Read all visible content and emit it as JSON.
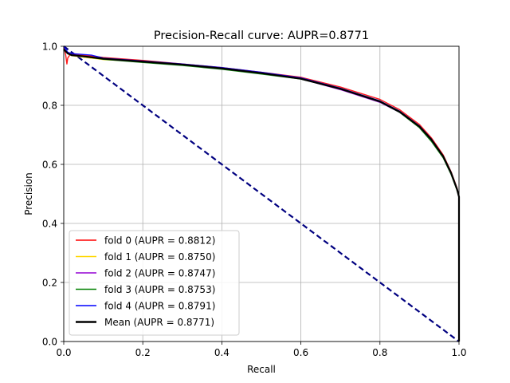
{
  "chart_data": {
    "type": "line",
    "title": "Precision-Recall curve: AUPR=0.8771",
    "xlabel": "Recall",
    "ylabel": "Precision",
    "xlim": [
      0,
      1
    ],
    "ylim": [
      0,
      1
    ],
    "grid": true,
    "legend_position": "lower-left",
    "xticks": [
      "0.0",
      "0.2",
      "0.4",
      "0.6",
      "0.8",
      "1.0"
    ],
    "yticks": [
      "0.0",
      "0.2",
      "0.4",
      "0.6",
      "0.8",
      "1.0"
    ],
    "series": [
      {
        "name": "fold 0 (AUPR = 0.8812)",
        "color": "#ff0000",
        "x": [
          0,
          0.005,
          0.008,
          0.01,
          0.015,
          0.02,
          0.05,
          0.1,
          0.2,
          0.3,
          0.4,
          0.5,
          0.6,
          0.7,
          0.8,
          0.85,
          0.9,
          0.93,
          0.96,
          0.98,
          0.995,
          1.0,
          1.0
        ],
        "y": [
          1.0,
          0.97,
          0.94,
          0.96,
          0.97,
          0.975,
          0.97,
          0.962,
          0.952,
          0.94,
          0.928,
          0.912,
          0.895,
          0.862,
          0.82,
          0.785,
          0.735,
          0.69,
          0.632,
          0.575,
          0.52,
          0.49,
          0.0
        ]
      },
      {
        "name": "fold 1 (AUPR = 0.8750)",
        "color": "#ffd700",
        "x": [
          0,
          0.01,
          0.02,
          0.05,
          0.1,
          0.2,
          0.3,
          0.4,
          0.5,
          0.6,
          0.7,
          0.8,
          0.85,
          0.9,
          0.93,
          0.96,
          0.98,
          0.995,
          1.0,
          1.0
        ],
        "y": [
          0.99,
          0.975,
          0.968,
          0.963,
          0.955,
          0.948,
          0.937,
          0.924,
          0.908,
          0.89,
          0.856,
          0.812,
          0.778,
          0.728,
          0.683,
          0.625,
          0.57,
          0.515,
          0.49,
          0.0
        ]
      },
      {
        "name": "fold 2 (AUPR = 0.8747)",
        "color": "#9400d3",
        "x": [
          0,
          0.01,
          0.02,
          0.05,
          0.1,
          0.2,
          0.3,
          0.4,
          0.5,
          0.6,
          0.7,
          0.8,
          0.85,
          0.9,
          0.93,
          0.96,
          0.98,
          0.995,
          1.0,
          1.0
        ],
        "y": [
          0.99,
          0.975,
          0.97,
          0.966,
          0.958,
          0.948,
          0.938,
          0.925,
          0.91,
          0.89,
          0.853,
          0.81,
          0.776,
          0.726,
          0.681,
          0.624,
          0.568,
          0.514,
          0.49,
          0.0
        ]
      },
      {
        "name": "fold 3 (AUPR = 0.8753)",
        "color": "#008000",
        "x": [
          0,
          0.01,
          0.02,
          0.05,
          0.1,
          0.2,
          0.3,
          0.4,
          0.5,
          0.6,
          0.7,
          0.8,
          0.85,
          0.9,
          0.93,
          0.96,
          0.98,
          0.995,
          1.0,
          1.0
        ],
        "y": [
          0.99,
          0.975,
          0.97,
          0.965,
          0.956,
          0.945,
          0.935,
          0.922,
          0.906,
          0.889,
          0.856,
          0.812,
          0.776,
          0.724,
          0.678,
          0.622,
          0.566,
          0.512,
          0.49,
          0.0
        ]
      },
      {
        "name": "fold 4 (AUPR = 0.8791)",
        "color": "#0000ff",
        "x": [
          0,
          0.005,
          0.01,
          0.02,
          0.05,
          0.07,
          0.1,
          0.2,
          0.3,
          0.4,
          0.5,
          0.6,
          0.7,
          0.8,
          0.85,
          0.9,
          0.93,
          0.96,
          0.98,
          0.995,
          1.0,
          1.0
        ],
        "y": [
          1.0,
          0.99,
          0.98,
          0.975,
          0.972,
          0.97,
          0.96,
          0.95,
          0.94,
          0.928,
          0.912,
          0.893,
          0.858,
          0.815,
          0.78,
          0.73,
          0.686,
          0.628,
          0.572,
          0.517,
          0.49,
          0.0
        ]
      },
      {
        "name": "Mean (AUPR = 0.8771)",
        "color": "#000000",
        "x": [
          0,
          0.01,
          0.02,
          0.05,
          0.1,
          0.2,
          0.3,
          0.4,
          0.5,
          0.6,
          0.7,
          0.8,
          0.85,
          0.9,
          0.93,
          0.96,
          0.98,
          0.995,
          1.0,
          1.0
        ],
        "y": [
          0.99,
          0.976,
          0.97,
          0.966,
          0.958,
          0.948,
          0.938,
          0.925,
          0.909,
          0.89,
          0.856,
          0.813,
          0.778,
          0.728,
          0.684,
          0.627,
          0.571,
          0.516,
          0.49,
          0.0
        ]
      }
    ],
    "reference_line": {
      "color": "#000080",
      "style": "dashed",
      "x": [
        0,
        1
      ],
      "y": [
        1,
        0
      ]
    }
  }
}
